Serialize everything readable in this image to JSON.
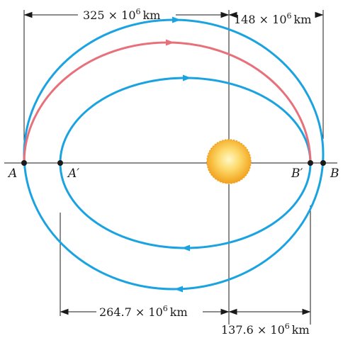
{
  "figure": {
    "points": {
      "A": "A",
      "A_prime": "A′",
      "B": "B",
      "B_prime": "B′"
    },
    "dimensions": {
      "top_left": {
        "mantissa": "325",
        "times": "×",
        "base": "10",
        "exp": "6",
        "unit": "km"
      },
      "top_right": {
        "mantissa": "148",
        "times": "×",
        "base": "10",
        "exp": "6",
        "unit": "km"
      },
      "bottom_left": {
        "mantissa": "264.7",
        "times": "×",
        "base": "10",
        "exp": "6",
        "unit": "km"
      },
      "bottom_right": {
        "mantissa": "137.6",
        "times": "×",
        "base": "10",
        "exp": "6",
        "unit": "km"
      }
    },
    "colors": {
      "orbit": "#1aa3e0",
      "transfer_path": "#e8707a",
      "lines": "#1a1a1a",
      "sun_core": "#fff3b0",
      "sun_edge": "#f2a21e"
    }
  }
}
